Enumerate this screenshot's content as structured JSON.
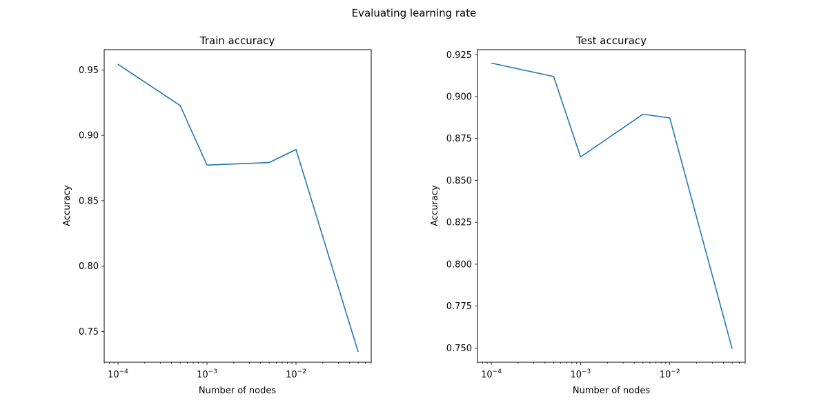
{
  "figure": {
    "suptitle": "Evaluating learning rate"
  },
  "colors": {
    "line": "#1f77b4",
    "axis": "#000000",
    "background": "#ffffff"
  },
  "chart_data": [
    {
      "type": "line",
      "title": "Train accuracy",
      "xlabel": "Number of nodes",
      "ylabel": "Accuracy",
      "xscale": "log",
      "grid": false,
      "x": [
        0.0001,
        0.0005,
        0.001,
        0.005,
        0.01,
        0.05
      ],
      "series": [
        {
          "values": [
            0.9543,
            0.9228,
            0.8773,
            0.8792,
            0.8892,
            0.7344
          ]
        }
      ],
      "xlim": [
        7e-05,
        0.07
      ],
      "ylim": [
        0.7265,
        0.9655
      ],
      "x_major_ticks": [
        0.0001,
        0.001,
        0.01
      ],
      "x_tick_labels": [
        {
          "base": "10",
          "exp": "−4"
        },
        {
          "base": "10",
          "exp": "−3"
        },
        {
          "base": "10",
          "exp": "−2"
        }
      ],
      "y_ticks": [
        0.75,
        0.8,
        0.85,
        0.9,
        0.95
      ],
      "y_tick_labels": [
        "0.75",
        "0.80",
        "0.85",
        "0.90",
        "0.95"
      ]
    },
    {
      "type": "line",
      "title": "Test accuracy",
      "xlabel": "Number of nodes",
      "ylabel": "Accuracy",
      "xscale": "log",
      "grid": false,
      "x": [
        0.0001,
        0.0005,
        0.001,
        0.005,
        0.01,
        0.05
      ],
      "series": [
        {
          "values": [
            0.92,
            0.912,
            0.864,
            0.8895,
            0.8873,
            0.7495
          ]
        }
      ],
      "xlim": [
        7e-05,
        0.07
      ],
      "ylim": [
        0.7415,
        0.928
      ],
      "x_major_ticks": [
        0.0001,
        0.001,
        0.01
      ],
      "x_tick_labels": [
        {
          "base": "10",
          "exp": "−4"
        },
        {
          "base": "10",
          "exp": "−3"
        },
        {
          "base": "10",
          "exp": "−2"
        }
      ],
      "y_ticks": [
        0.75,
        0.775,
        0.8,
        0.825,
        0.85,
        0.875,
        0.9,
        0.925
      ],
      "y_tick_labels": [
        "0.750",
        "0.775",
        "0.800",
        "0.825",
        "0.850",
        "0.875",
        "0.900",
        "0.925"
      ]
    }
  ]
}
